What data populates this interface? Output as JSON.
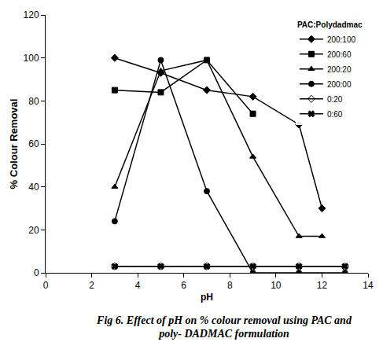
{
  "chart_data": {
    "type": "line",
    "title": "Fig 6. Effect of pH on % colour removal using PAC and poly- DADMAC formulation",
    "x_label": "pH",
    "y_label": "% Colour Removal",
    "legend_title": "PAC:Polydadmac",
    "legend": "top right",
    "grid": false,
    "xlim": [
      0,
      14
    ],
    "xticks": [
      0,
      2,
      4,
      6,
      8,
      10,
      12,
      14
    ],
    "ylim": [
      0,
      120
    ],
    "yticks": [
      0,
      20,
      40,
      60,
      80,
      100,
      120
    ],
    "series": [
      {
        "name": "200:100",
        "color": "#000000",
        "marker": "diamond",
        "line_style": "solid",
        "x": [
          3,
          5,
          7,
          9,
          11,
          12
        ],
        "values": [
          100,
          93,
          85,
          82,
          69,
          30
        ]
      },
      {
        "name": "200:60",
        "color": "#000000",
        "marker": "square",
        "line_style": "solid",
        "x": [
          3,
          5,
          7,
          9
        ],
        "values": [
          85,
          84,
          99,
          74
        ]
      },
      {
        "name": "200:20",
        "color": "#000000",
        "marker": "triangle-up",
        "line_style": "solid",
        "x": [
          3,
          5,
          7,
          9,
          11,
          12
        ],
        "values": [
          40,
          94,
          99,
          54,
          17,
          17
        ]
      },
      {
        "name": "200:00",
        "color": "#000000",
        "marker": "circle",
        "line_style": "solid",
        "x": [
          3,
          5,
          7,
          9,
          11,
          13
        ],
        "values": [
          24,
          99,
          38,
          0,
          0,
          0
        ]
      },
      {
        "name": "0:20",
        "color": "#000000",
        "marker": "diamond-open",
        "line_style": "solid",
        "x": [
          3,
          5,
          7,
          9,
          11,
          13
        ],
        "values": [
          3,
          3,
          3,
          3,
          3,
          3
        ]
      },
      {
        "name": "0:60",
        "color": "#000000",
        "marker": "x",
        "line_style": "solid",
        "x": [
          3,
          5,
          7,
          9,
          11,
          13
        ],
        "values": [
          3,
          3,
          3,
          3,
          3,
          3
        ]
      }
    ]
  }
}
